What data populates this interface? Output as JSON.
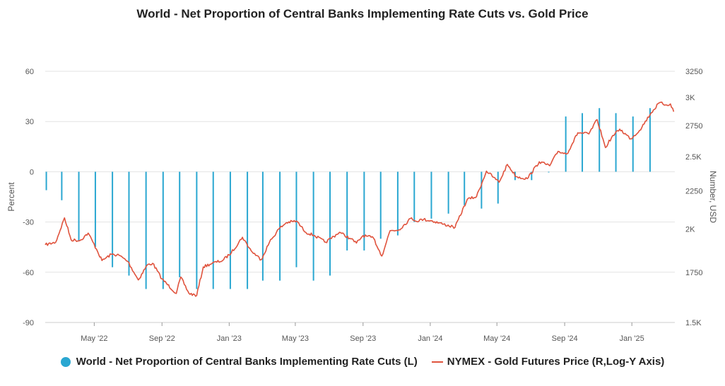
{
  "colors": {
    "bars": "#2aa7d1",
    "line": "#e0533d",
    "grid": "#e3e3e3",
    "tick": "#555555"
  },
  "chart_data": {
    "type": "bar+line",
    "title": "World - Net Proportion of Central Banks Implementing Rate Cuts vs. Gold Price",
    "ylabel_left": "Percent",
    "ylabel_right": "Number, USD",
    "left_axis": {
      "min": -90,
      "max": 60,
      "ticks": [
        60,
        30,
        0,
        -30,
        -60,
        -90
      ],
      "tick_labels": [
        "60",
        "30",
        "0",
        "-30",
        "-60",
        "-90"
      ]
    },
    "right_axis": {
      "scale": "log",
      "min": 1500,
      "max": 3250,
      "ticks": [
        3250,
        3000,
        2750,
        2500,
        2250,
        2000,
        1750,
        1500
      ],
      "tick_labels": [
        "3250",
        "3K",
        "2750",
        "2.5K",
        "2250",
        "2K",
        "1750",
        "1.5K"
      ]
    },
    "x_axis": {
      "start": "2022-02-01",
      "end": "2025-03-20",
      "ticks": [
        "2022-05-01",
        "2022-09-01",
        "2023-01-01",
        "2023-05-01",
        "2023-09-01",
        "2024-01-01",
        "2024-05-01",
        "2024-09-01",
        "2025-01-01"
      ],
      "tick_labels": [
        "May '22",
        "Sep '22",
        "Jan '23",
        "May '23",
        "Sep '23",
        "Jan '24",
        "May '24",
        "Sep '24",
        "Jan '25"
      ]
    },
    "series": [
      {
        "name": "World - Net Proportion of Central Banks Implementing Rate Cuts (L)",
        "type": "bar",
        "axis": "left",
        "points": [
          [
            "2022-02-03",
            -11
          ],
          [
            "2022-03-03",
            -17
          ],
          [
            "2022-04-03",
            -41
          ],
          [
            "2022-05-03",
            -45
          ],
          [
            "2022-06-03",
            -57
          ],
          [
            "2022-07-03",
            -62
          ],
          [
            "2022-08-03",
            -70
          ],
          [
            "2022-09-03",
            -70
          ],
          [
            "2022-10-03",
            -63
          ],
          [
            "2022-11-03",
            -70
          ],
          [
            "2022-12-03",
            -70
          ],
          [
            "2023-01-03",
            -70
          ],
          [
            "2023-02-03",
            -70
          ],
          [
            "2023-03-03",
            -65
          ],
          [
            "2023-04-03",
            -65
          ],
          [
            "2023-05-03",
            -57
          ],
          [
            "2023-06-03",
            -65
          ],
          [
            "2023-07-03",
            -62
          ],
          [
            "2023-08-03",
            -47
          ],
          [
            "2023-09-03",
            -47
          ],
          [
            "2023-10-03",
            -40
          ],
          [
            "2023-11-03",
            -38
          ],
          [
            "2023-12-03",
            -30
          ],
          [
            "2024-01-03",
            -28
          ],
          [
            "2024-02-03",
            -25
          ],
          [
            "2024-03-03",
            -20
          ],
          [
            "2024-04-03",
            -22
          ],
          [
            "2024-05-03",
            -19
          ],
          [
            "2024-06-03",
            -5
          ],
          [
            "2024-07-03",
            -5
          ],
          [
            "2024-08-03",
            0
          ],
          [
            "2024-09-03",
            33
          ],
          [
            "2024-10-03",
            35
          ],
          [
            "2024-11-03",
            38
          ],
          [
            "2024-12-03",
            35
          ],
          [
            "2025-01-03",
            33
          ],
          [
            "2025-02-03",
            38
          ]
        ]
      },
      {
        "name": "NYMEX - Gold Futures Price (R,Log-Y Axis)",
        "type": "line",
        "axis": "right",
        "points": [
          [
            "2022-02-01",
            1905
          ],
          [
            "2022-02-20",
            1920
          ],
          [
            "2022-03-08",
            2070
          ],
          [
            "2022-03-20",
            1935
          ],
          [
            "2022-04-05",
            1930
          ],
          [
            "2022-04-20",
            1975
          ],
          [
            "2022-05-05",
            1880
          ],
          [
            "2022-05-15",
            1815
          ],
          [
            "2022-06-01",
            1850
          ],
          [
            "2022-06-15",
            1845
          ],
          [
            "2022-07-01",
            1810
          ],
          [
            "2022-07-20",
            1710
          ],
          [
            "2022-08-05",
            1790
          ],
          [
            "2022-08-15",
            1800
          ],
          [
            "2022-09-01",
            1715
          ],
          [
            "2022-09-27",
            1640
          ],
          [
            "2022-10-05",
            1725
          ],
          [
            "2022-10-20",
            1640
          ],
          [
            "2022-11-03",
            1630
          ],
          [
            "2022-11-15",
            1780
          ],
          [
            "2022-12-01",
            1800
          ],
          [
            "2022-12-20",
            1815
          ],
          [
            "2023-01-05",
            1860
          ],
          [
            "2023-01-25",
            1950
          ],
          [
            "2023-02-10",
            1870
          ],
          [
            "2023-02-28",
            1820
          ],
          [
            "2023-03-15",
            1920
          ],
          [
            "2023-04-01",
            2000
          ],
          [
            "2023-04-15",
            2040
          ],
          [
            "2023-05-03",
            2050
          ],
          [
            "2023-05-20",
            1980
          ],
          [
            "2023-06-05",
            1960
          ],
          [
            "2023-06-25",
            1920
          ],
          [
            "2023-07-20",
            1980
          ],
          [
            "2023-08-10",
            1940
          ],
          [
            "2023-08-20",
            1915
          ],
          [
            "2023-09-01",
            1960
          ],
          [
            "2023-09-20",
            1945
          ],
          [
            "2023-10-05",
            1840
          ],
          [
            "2023-10-20",
            1990
          ],
          [
            "2023-11-05",
            1995
          ],
          [
            "2023-11-28",
            2070
          ],
          [
            "2023-12-05",
            2050
          ],
          [
            "2023-12-20",
            2060
          ],
          [
            "2024-01-05",
            2050
          ],
          [
            "2024-01-25",
            2030
          ],
          [
            "2024-02-15",
            2010
          ],
          [
            "2024-03-08",
            2190
          ],
          [
            "2024-03-25",
            2210
          ],
          [
            "2024-04-12",
            2390
          ],
          [
            "2024-04-25",
            2345
          ],
          [
            "2024-05-05",
            2310
          ],
          [
            "2024-05-20",
            2440
          ],
          [
            "2024-06-05",
            2350
          ],
          [
            "2024-06-25",
            2335
          ],
          [
            "2024-07-17",
            2460
          ],
          [
            "2024-08-05",
            2430
          ],
          [
            "2024-08-20",
            2540
          ],
          [
            "2024-09-05",
            2520
          ],
          [
            "2024-09-25",
            2690
          ],
          [
            "2024-10-15",
            2680
          ],
          [
            "2024-10-30",
            2800
          ],
          [
            "2024-11-14",
            2570
          ],
          [
            "2024-11-25",
            2650
          ],
          [
            "2024-12-10",
            2720
          ],
          [
            "2024-12-30",
            2640
          ],
          [
            "2025-01-15",
            2710
          ],
          [
            "2025-02-05",
            2860
          ],
          [
            "2025-02-20",
            2950
          ],
          [
            "2025-03-05",
            2930
          ],
          [
            "2025-03-12",
            2940
          ],
          [
            "2025-03-18",
            2870
          ]
        ]
      }
    ],
    "legend": [
      {
        "label": "World - Net Proportion of Central Banks Implementing Rate Cuts (L)",
        "marker": "circle"
      },
      {
        "label": "NYMEX - Gold Futures Price (R,Log-Y Axis)",
        "marker": "line"
      }
    ]
  }
}
